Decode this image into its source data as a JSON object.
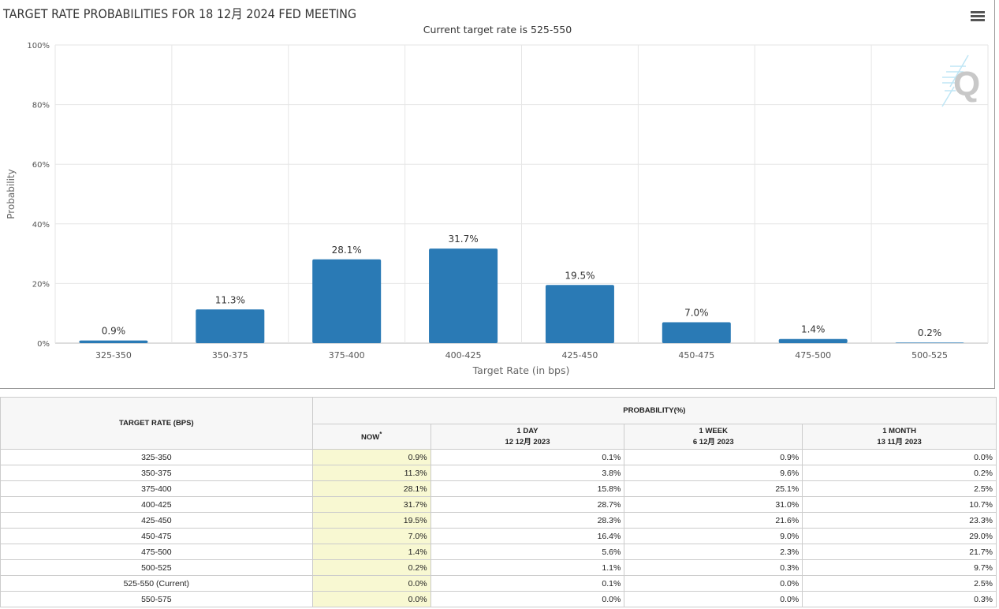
{
  "title": "TARGET RATE PROBABILITIES FOR 18 12月 2024 FED MEETING",
  "subtitle": "Current target rate is 525-550",
  "menu_icon": "hamburger-menu-icon",
  "chart_data": {
    "type": "bar",
    "categories": [
      "325-350",
      "350-375",
      "375-400",
      "400-425",
      "425-450",
      "450-475",
      "475-500",
      "500-525"
    ],
    "values": [
      0.9,
      11.3,
      28.1,
      31.7,
      19.5,
      7.0,
      1.4,
      0.2
    ],
    "data_labels": [
      "0.9%",
      "11.3%",
      "28.1%",
      "31.7%",
      "19.5%",
      "7.0%",
      "1.4%",
      "0.2%"
    ],
    "xlabel": "Target Rate (in bps)",
    "ylabel": "Probability",
    "ylim": [
      0,
      100
    ],
    "yticks": [
      "0%",
      "20%",
      "40%",
      "60%",
      "80%",
      "100%"
    ],
    "grid": true,
    "color": "#2a7ab5"
  },
  "table": {
    "header_rate": "TARGET RATE (BPS)",
    "header_prob": "PROBABILITY(%)",
    "cols": [
      {
        "label": "NOW",
        "sup": "*",
        "date": ""
      },
      {
        "label": "1 DAY",
        "date": "12 12月 2023"
      },
      {
        "label": "1 WEEK",
        "date": "6 12月 2023"
      },
      {
        "label": "1 MONTH",
        "date": "13 11月 2023"
      }
    ],
    "rows": [
      [
        "325-350",
        "0.9%",
        "0.1%",
        "0.9%",
        "0.0%"
      ],
      [
        "350-375",
        "11.3%",
        "3.8%",
        "9.6%",
        "0.2%"
      ],
      [
        "375-400",
        "28.1%",
        "15.8%",
        "25.1%",
        "2.5%"
      ],
      [
        "400-425",
        "31.7%",
        "28.7%",
        "31.0%",
        "10.7%"
      ],
      [
        "425-450",
        "19.5%",
        "28.3%",
        "21.6%",
        "23.3%"
      ],
      [
        "450-475",
        "7.0%",
        "16.4%",
        "9.0%",
        "29.0%"
      ],
      [
        "475-500",
        "1.4%",
        "5.6%",
        "2.3%",
        "21.7%"
      ],
      [
        "500-525",
        "0.2%",
        "1.1%",
        "0.3%",
        "9.7%"
      ],
      [
        "525-550 (Current)",
        "0.0%",
        "0.1%",
        "0.0%",
        "2.5%"
      ],
      [
        "550-575",
        "0.0%",
        "0.0%",
        "0.0%",
        "0.3%"
      ]
    ]
  }
}
